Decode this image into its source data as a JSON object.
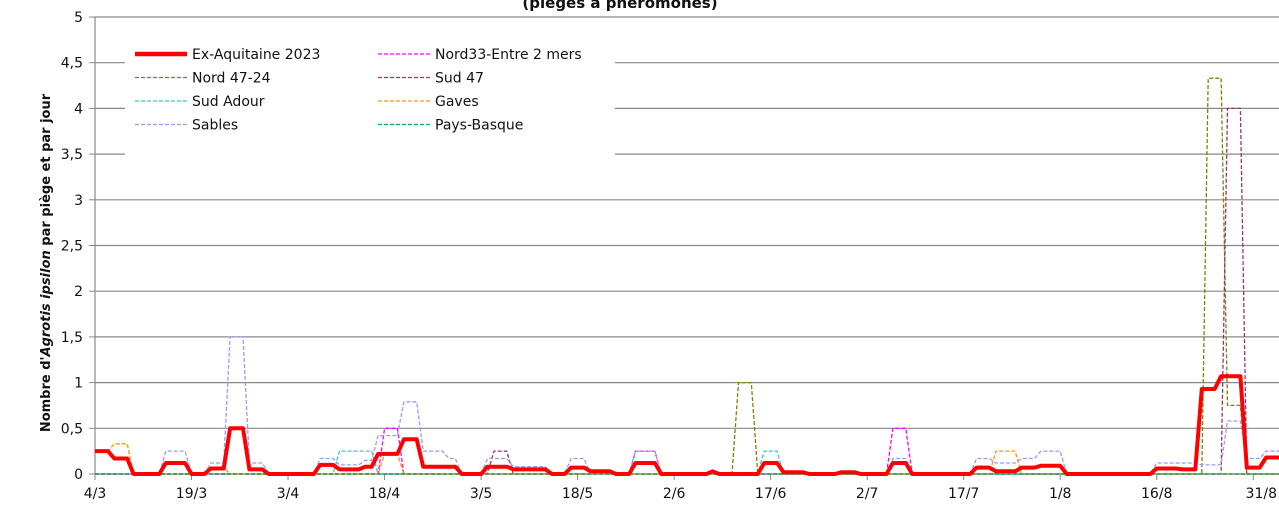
{
  "chart_data": {
    "type": "line",
    "title": "(pièges à phéromones)",
    "ylabel_prefix": "Nombre d'",
    "ylabel_italic": "Agrotis ipsilon",
    "ylabel_suffix": " par piège et par jour",
    "xlabel": "",
    "ylim": [
      0,
      5
    ],
    "yticks": [
      "0",
      "0,5",
      "1",
      "1,5",
      "2",
      "2,5",
      "3",
      "3,5",
      "4",
      "4,5",
      "5"
    ],
    "xticks": [
      "4/3",
      "19/3",
      "3/4",
      "18/4",
      "3/5",
      "18/5",
      "2/6",
      "17/6",
      "2/7",
      "17/7",
      "1/8",
      "16/8",
      "31/8"
    ],
    "grid": true,
    "legend_position": "top-left",
    "series": [
      {
        "name": "Ex-Aquitaine 2023",
        "color": "#ff0000",
        "style": "solid-thick",
        "points": [
          [
            0,
            0.25
          ],
          [
            2,
            0.25
          ],
          [
            3,
            0.17
          ],
          [
            5,
            0.17
          ],
          [
            6,
            0
          ],
          [
            10,
            0
          ],
          [
            11,
            0.12
          ],
          [
            14,
            0.12
          ],
          [
            15,
            0
          ],
          [
            17,
            0
          ],
          [
            18,
            0.06
          ],
          [
            20,
            0.06
          ],
          [
            21,
            0.5
          ],
          [
            23,
            0.5
          ],
          [
            24,
            0.05
          ],
          [
            26,
            0.05
          ],
          [
            27,
            0
          ],
          [
            34,
            0
          ],
          [
            35,
            0.1
          ],
          [
            37,
            0.1
          ],
          [
            38,
            0.05
          ],
          [
            41,
            0.05
          ],
          [
            42,
            0.08
          ],
          [
            43,
            0.08
          ],
          [
            44,
            0.22
          ],
          [
            47,
            0.22
          ],
          [
            48,
            0.38
          ],
          [
            50,
            0.38
          ],
          [
            51,
            0.08
          ],
          [
            56,
            0.08
          ],
          [
            57,
            0
          ],
          [
            60,
            0
          ],
          [
            61,
            0.08
          ],
          [
            64,
            0.08
          ],
          [
            65,
            0.05
          ],
          [
            70,
            0.05
          ],
          [
            71,
            0
          ],
          [
            73,
            0
          ],
          [
            74,
            0.07
          ],
          [
            76,
            0.07
          ],
          [
            77,
            0.03
          ],
          [
            80,
            0.03
          ],
          [
            81,
            0
          ],
          [
            83,
            0
          ],
          [
            84,
            0.12
          ],
          [
            87,
            0.12
          ],
          [
            88,
            0
          ],
          [
            95,
            0
          ],
          [
            96,
            0.03
          ],
          [
            97,
            0
          ],
          [
            103,
            0
          ],
          [
            104,
            0.12
          ],
          [
            106,
            0.12
          ],
          [
            107,
            0.02
          ],
          [
            110,
            0.02
          ],
          [
            111,
            0
          ],
          [
            115,
            0
          ],
          [
            116,
            0.02
          ],
          [
            118,
            0.02
          ],
          [
            119,
            0
          ],
          [
            123,
            0
          ],
          [
            124,
            0.12
          ],
          [
            126,
            0.12
          ],
          [
            127,
            0
          ],
          [
            136,
            0
          ],
          [
            137,
            0.07
          ],
          [
            139,
            0.07
          ],
          [
            140,
            0.03
          ],
          [
            143,
            0.03
          ],
          [
            144,
            0.07
          ],
          [
            146,
            0.07
          ],
          [
            147,
            0.09
          ],
          [
            150,
            0.09
          ],
          [
            151,
            0
          ],
          [
            164,
            0
          ],
          [
            165,
            0.06
          ],
          [
            168,
            0.06
          ],
          [
            169,
            0.05
          ],
          [
            171,
            0.05
          ],
          [
            172,
            0.93
          ],
          [
            174,
            0.93
          ],
          [
            175,
            1.07
          ],
          [
            178,
            1.07
          ],
          [
            179,
            0.07
          ],
          [
            181,
            0.07
          ],
          [
            182,
            0.18
          ],
          [
            184,
            0.18
          ]
        ]
      },
      {
        "name": "Nord33-Entre 2 mers",
        "color": "#ff00ff",
        "style": "dashed",
        "points": [
          [
            0,
            0
          ],
          [
            44,
            0
          ],
          [
            45,
            0.5
          ],
          [
            47,
            0.5
          ],
          [
            48,
            0
          ],
          [
            83,
            0
          ],
          [
            84,
            0.25
          ],
          [
            87,
            0.25
          ],
          [
            88,
            0
          ],
          [
            123,
            0
          ],
          [
            124,
            0.5
          ],
          [
            126,
            0.5
          ],
          [
            127,
            0
          ],
          [
            184,
            0
          ]
        ]
      },
      {
        "name": "Nord 47-24",
        "color": "#808000",
        "style": "dashed",
        "points": [
          [
            0,
            0
          ],
          [
            99,
            0
          ],
          [
            100,
            1
          ],
          [
            102,
            1
          ],
          [
            103,
            0
          ],
          [
            172,
            0
          ],
          [
            173,
            4.33
          ],
          [
            175,
            4.33
          ],
          [
            176,
            0.75
          ],
          [
            178,
            0.75
          ],
          [
            179,
            0
          ],
          [
            184,
            0
          ]
        ]
      },
      {
        "name": "Sud 47",
        "color": "#993366",
        "style": "dashed",
        "points": [
          [
            0,
            0
          ],
          [
            61,
            0
          ],
          [
            62,
            0.25
          ],
          [
            64,
            0.25
          ],
          [
            65,
            0
          ],
          [
            175,
            0
          ],
          [
            176,
            4
          ],
          [
            178,
            4
          ],
          [
            179,
            0
          ],
          [
            184,
            0
          ]
        ]
      },
      {
        "name": "Sud Adour",
        "color": "#33cccc",
        "style": "dashed",
        "points": [
          [
            0,
            0
          ],
          [
            37,
            0
          ],
          [
            38,
            0.25
          ],
          [
            43,
            0.25
          ],
          [
            44,
            0
          ],
          [
            103,
            0
          ],
          [
            104,
            0.25
          ],
          [
            106,
            0.25
          ],
          [
            107,
            0
          ],
          [
            184,
            0
          ]
        ]
      },
      {
        "name": "Gaves",
        "color": "#ff9900",
        "style": "dashed",
        "points": [
          [
            0,
            0.25
          ],
          [
            2,
            0.25
          ],
          [
            3,
            0.33
          ],
          [
            5,
            0.33
          ],
          [
            6,
            0
          ],
          [
            17,
            0
          ],
          [
            18,
            0.07
          ],
          [
            20,
            0.07
          ],
          [
            21,
            0
          ],
          [
            44,
            0
          ],
          [
            45,
            0.22
          ],
          [
            47,
            0.22
          ],
          [
            48,
            0
          ],
          [
            139,
            0
          ],
          [
            140,
            0.25
          ],
          [
            143,
            0.25
          ],
          [
            144,
            0
          ],
          [
            184,
            0
          ]
        ]
      },
      {
        "name": "Sables",
        "color": "#9999ff",
        "style": "dashed",
        "points": [
          [
            0,
            0
          ],
          [
            10,
            0
          ],
          [
            11,
            0.25
          ],
          [
            14,
            0.25
          ],
          [
            15,
            0
          ],
          [
            17,
            0
          ],
          [
            18,
            0.12
          ],
          [
            20,
            0.12
          ],
          [
            21,
            1.5
          ],
          [
            23,
            1.5
          ],
          [
            24,
            0.12
          ],
          [
            26,
            0.12
          ],
          [
            27,
            0
          ],
          [
            34,
            0
          ],
          [
            35,
            0.17
          ],
          [
            37,
            0.17
          ],
          [
            38,
            0.1
          ],
          [
            41,
            0.1
          ],
          [
            42,
            0.15
          ],
          [
            43,
            0.15
          ],
          [
            44,
            0.42
          ],
          [
            47,
            0.42
          ],
          [
            48,
            0.79
          ],
          [
            50,
            0.79
          ],
          [
            51,
            0.25
          ],
          [
            54,
            0.25
          ],
          [
            55,
            0.17
          ],
          [
            56,
            0.17
          ],
          [
            57,
            0
          ],
          [
            60,
            0
          ],
          [
            61,
            0.17
          ],
          [
            64,
            0.17
          ],
          [
            65,
            0.08
          ],
          [
            70,
            0.08
          ],
          [
            71,
            0
          ],
          [
            73,
            0
          ],
          [
            74,
            0.17
          ],
          [
            76,
            0.17
          ],
          [
            77,
            0
          ],
          [
            83,
            0
          ],
          [
            84,
            0.25
          ],
          [
            87,
            0.25
          ],
          [
            88,
            0
          ],
          [
            123,
            0
          ],
          [
            124,
            0.17
          ],
          [
            126,
            0.17
          ],
          [
            127,
            0
          ],
          [
            136,
            0
          ],
          [
            137,
            0.17
          ],
          [
            139,
            0.17
          ],
          [
            140,
            0.12
          ],
          [
            143,
            0.12
          ],
          [
            144,
            0.17
          ],
          [
            146,
            0.17
          ],
          [
            147,
            0.25
          ],
          [
            150,
            0.25
          ],
          [
            151,
            0
          ],
          [
            164,
            0
          ],
          [
            165,
            0.12
          ],
          [
            171,
            0.12
          ],
          [
            172,
            0.1
          ],
          [
            175,
            0.1
          ],
          [
            176,
            0.58
          ],
          [
            178,
            0.58
          ],
          [
            179,
            0.17
          ],
          [
            181,
            0.17
          ],
          [
            182,
            0.25
          ],
          [
            184,
            0.25
          ]
        ]
      },
      {
        "name": "Pays-Basque",
        "color": "#00b050",
        "style": "dashed",
        "points": [
          [
            0,
            0
          ],
          [
            184,
            0
          ]
        ]
      }
    ]
  }
}
